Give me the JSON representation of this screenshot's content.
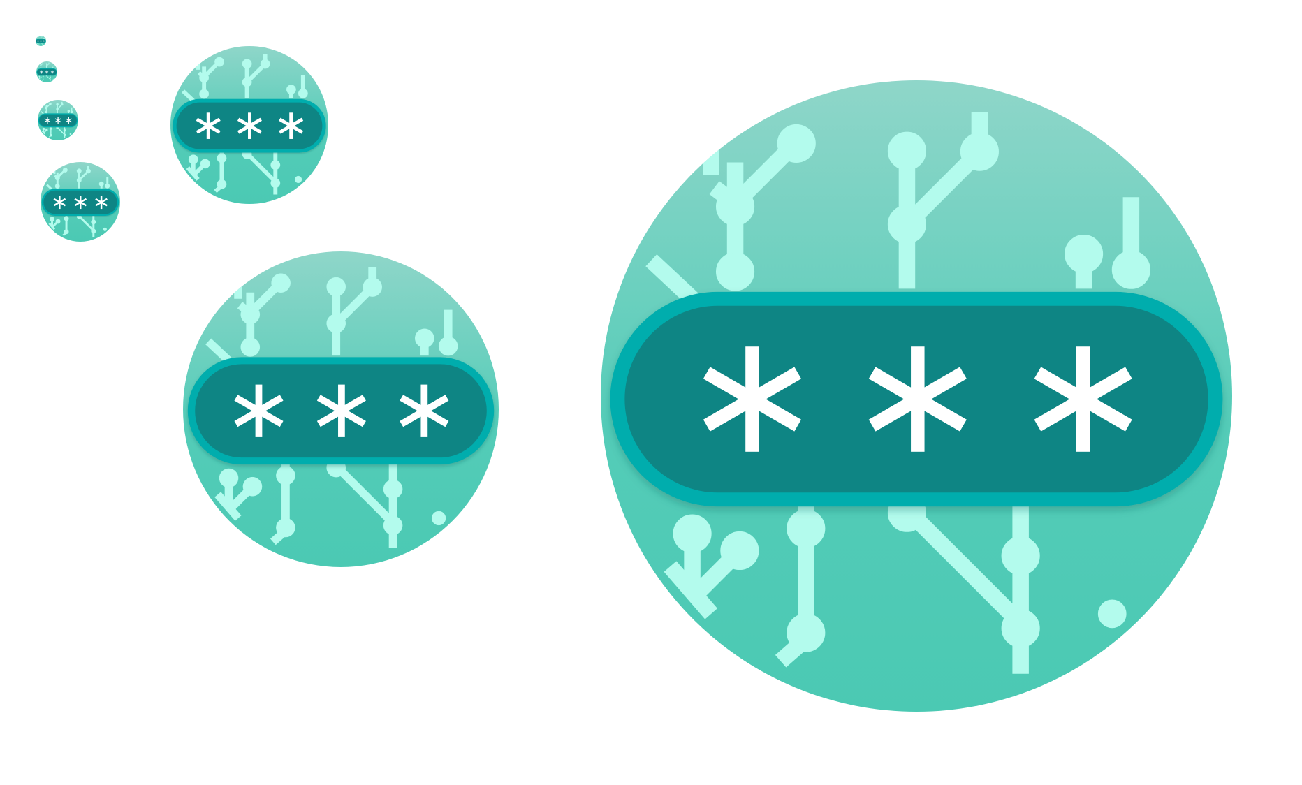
{
  "icon_set": {
    "name": "password-icon",
    "icon_names": [
      "password-icon",
      "asterisk-icon"
    ],
    "mask_text": "***",
    "sizes_label": [
      "16",
      "32",
      "64",
      "128",
      "256",
      "512",
      "1024"
    ],
    "colors": {
      "background": "#ffffff",
      "circle_top": "#8ed4c7",
      "circle_bottom": "#4ecab4",
      "circuit": "#b3fbed",
      "pill_outer": "#05adad",
      "pill_inner": "#0e8584",
      "asterisk": "#ffffff"
    }
  }
}
